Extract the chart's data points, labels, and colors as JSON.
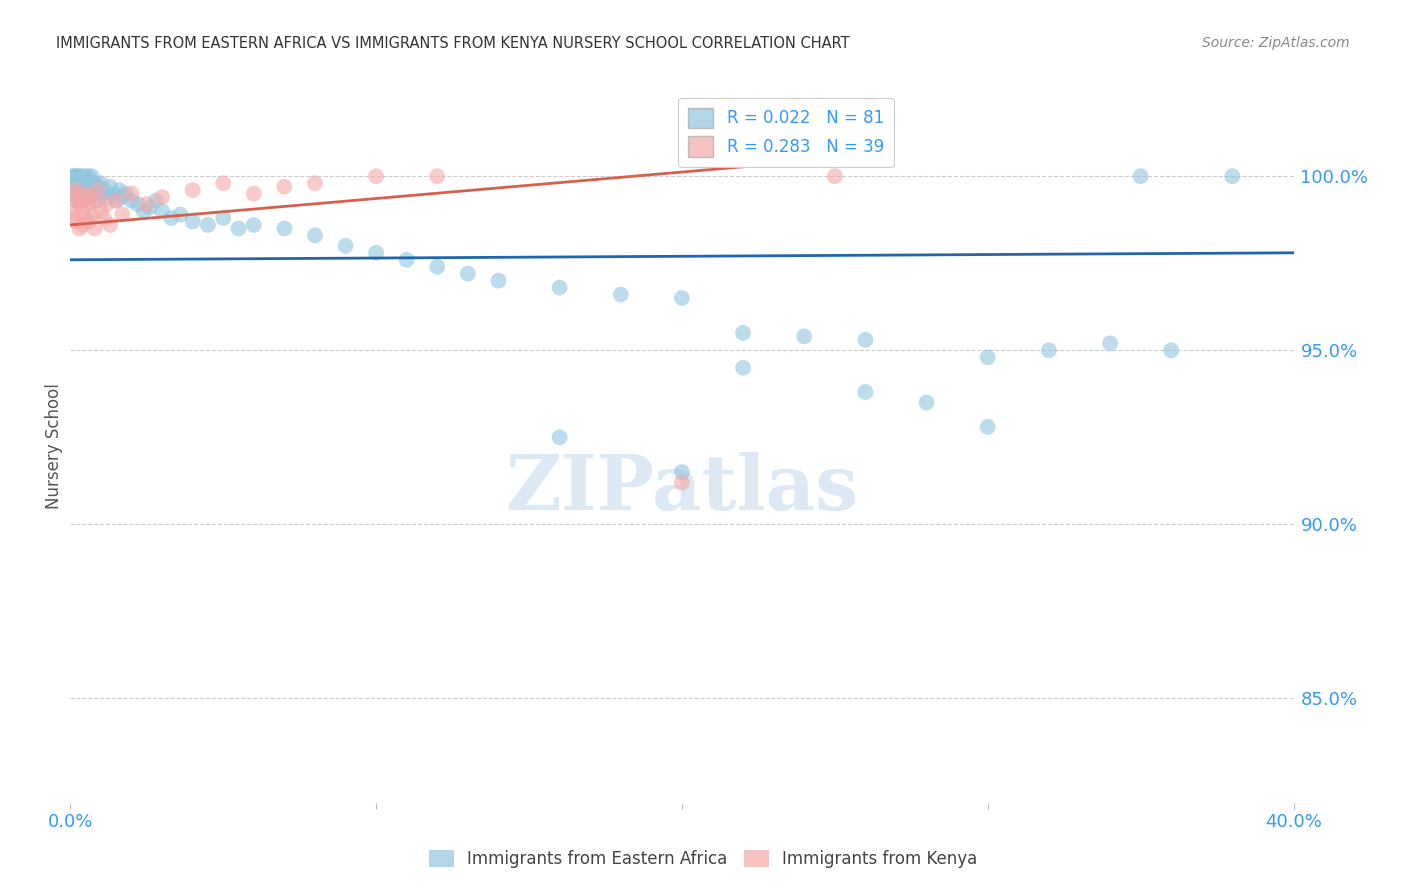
{
  "title": "IMMIGRANTS FROM EASTERN AFRICA VS IMMIGRANTS FROM KENYA NURSERY SCHOOL CORRELATION CHART",
  "source": "Source: ZipAtlas.com",
  "ylabel": "Nursery School",
  "yticks": [
    85.0,
    90.0,
    95.0,
    100.0
  ],
  "ytick_labels": [
    "85.0%",
    "90.0%",
    "95.0%",
    "100.0%"
  ],
  "legend_blue_r": "R = 0.022",
  "legend_blue_n": "N = 81",
  "legend_pink_r": "R = 0.283",
  "legend_pink_n": "N = 39",
  "blue_color": "#92c5de",
  "pink_color": "#f4a8a8",
  "trend_blue_color": "#2166ac",
  "trend_pink_color": "#d6604d",
  "axis_color": "#3399ff",
  "title_color": "#333333",
  "background_color": "#ffffff",
  "watermark_color": "#dce9f5",
  "blue_x": [
    0.001,
    0.001,
    0.001,
    0.001,
    0.002,
    0.002,
    0.002,
    0.002,
    0.002,
    0.002,
    0.003,
    0.003,
    0.003,
    0.003,
    0.003,
    0.004,
    0.004,
    0.004,
    0.004,
    0.005,
    0.005,
    0.005,
    0.006,
    0.006,
    0.006,
    0.007,
    0.007,
    0.007,
    0.008,
    0.008,
    0.009,
    0.009,
    0.01,
    0.01,
    0.011,
    0.012,
    0.013,
    0.014,
    0.015,
    0.016,
    0.017,
    0.018,
    0.02,
    0.022,
    0.024,
    0.026,
    0.028,
    0.03,
    0.033,
    0.036,
    0.04,
    0.045,
    0.05,
    0.055,
    0.06,
    0.07,
    0.08,
    0.09,
    0.1,
    0.11,
    0.12,
    0.13,
    0.14,
    0.16,
    0.18,
    0.2,
    0.22,
    0.24,
    0.26,
    0.3,
    0.32,
    0.34,
    0.36,
    0.16,
    0.2,
    0.22,
    0.26,
    0.28,
    0.3,
    0.35,
    0.38
  ],
  "blue_y": [
    100.0,
    99.8,
    99.5,
    100.0,
    99.8,
    100.0,
    99.6,
    99.3,
    100.0,
    99.5,
    99.7,
    100.0,
    99.8,
    100.0,
    99.5,
    99.8,
    100.0,
    99.6,
    99.3,
    99.8,
    100.0,
    99.5,
    99.7,
    100.0,
    99.4,
    99.6,
    99.8,
    100.0,
    99.5,
    99.8,
    99.3,
    99.7,
    99.5,
    99.8,
    99.6,
    99.4,
    99.7,
    99.5,
    99.3,
    99.6,
    99.4,
    99.5,
    99.3,
    99.2,
    99.0,
    99.1,
    99.3,
    99.0,
    98.8,
    98.9,
    98.7,
    98.6,
    98.8,
    98.5,
    98.6,
    98.5,
    98.3,
    98.0,
    97.8,
    97.6,
    97.4,
    97.2,
    97.0,
    96.8,
    96.6,
    96.5,
    95.5,
    95.4,
    95.3,
    94.8,
    95.0,
    95.2,
    95.0,
    92.5,
    91.5,
    94.5,
    93.8,
    93.5,
    92.8,
    100.0,
    100.0
  ],
  "pink_x": [
    0.001,
    0.001,
    0.001,
    0.002,
    0.002,
    0.002,
    0.003,
    0.003,
    0.003,
    0.004,
    0.004,
    0.004,
    0.005,
    0.005,
    0.006,
    0.006,
    0.007,
    0.007,
    0.008,
    0.008,
    0.009,
    0.01,
    0.011,
    0.012,
    0.013,
    0.015,
    0.017,
    0.02,
    0.025,
    0.03,
    0.04,
    0.05,
    0.06,
    0.07,
    0.08,
    0.1,
    0.12,
    0.2,
    0.25
  ],
  "pink_y": [
    99.0,
    99.5,
    98.8,
    99.3,
    98.7,
    99.6,
    99.2,
    98.5,
    99.4,
    99.0,
    98.6,
    99.3,
    99.5,
    98.8,
    99.2,
    98.7,
    99.4,
    98.9,
    99.3,
    98.5,
    99.6,
    99.0,
    98.8,
    99.2,
    98.6,
    99.3,
    98.9,
    99.5,
    99.2,
    99.4,
    99.6,
    99.8,
    99.5,
    99.7,
    99.8,
    100.0,
    100.0,
    91.2,
    100.0
  ],
  "xlim": [
    0.0,
    0.4
  ],
  "ylim": [
    82.0,
    102.5
  ],
  "blue_trend_x": [
    0.0,
    0.4
  ],
  "blue_trend_y": [
    97.6,
    97.8
  ],
  "pink_trend_x": [
    0.0,
    0.25
  ],
  "pink_trend_y": [
    98.6,
    100.5
  ]
}
